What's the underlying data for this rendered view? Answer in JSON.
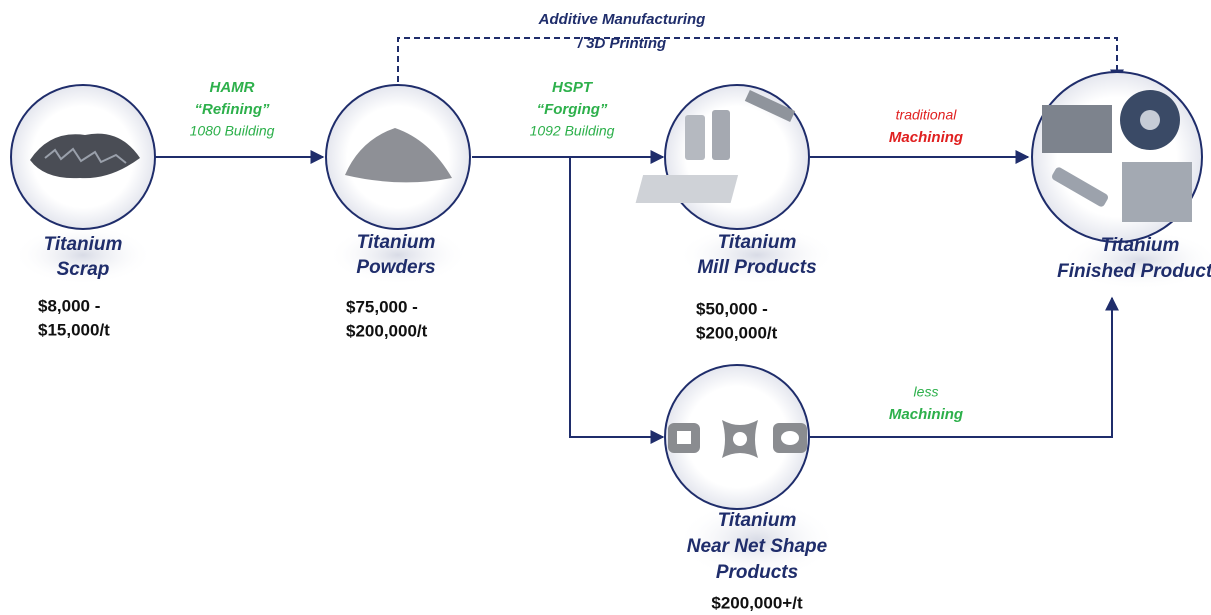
{
  "nodes": [
    {
      "label": [
        "Titanium",
        "Scrap"
      ],
      "price": [
        "$8,000 -",
        "$15,000/t"
      ]
    },
    {
      "label": [
        "Titanium",
        "Powders"
      ],
      "price": [
        "$75,000 -",
        "$200,000/t"
      ]
    },
    {
      "label": [
        "Titanium",
        "Mill Products"
      ],
      "price": [
        "$50,000 -",
        "$200,000/t"
      ]
    },
    {
      "label": [
        "Titanium",
        "Near Net Shape",
        "Products"
      ],
      "price": [
        "$200,000+/t"
      ]
    },
    {
      "label": [
        "Titanium",
        "Finished Products"
      ]
    }
  ],
  "edges": [
    {
      "label": [
        "HAMR",
        "“Refining”",
        "1080 Building"
      ]
    },
    {
      "label": [
        "HSPT",
        "“Forging”",
        "1092 Building"
      ]
    },
    {
      "label": [
        "traditional",
        "Machining"
      ]
    },
    {
      "label": [
        "less",
        "Machining"
      ]
    },
    {
      "label": [
        "Additive Manufacturing",
        "/ 3D Printing"
      ]
    }
  ]
}
